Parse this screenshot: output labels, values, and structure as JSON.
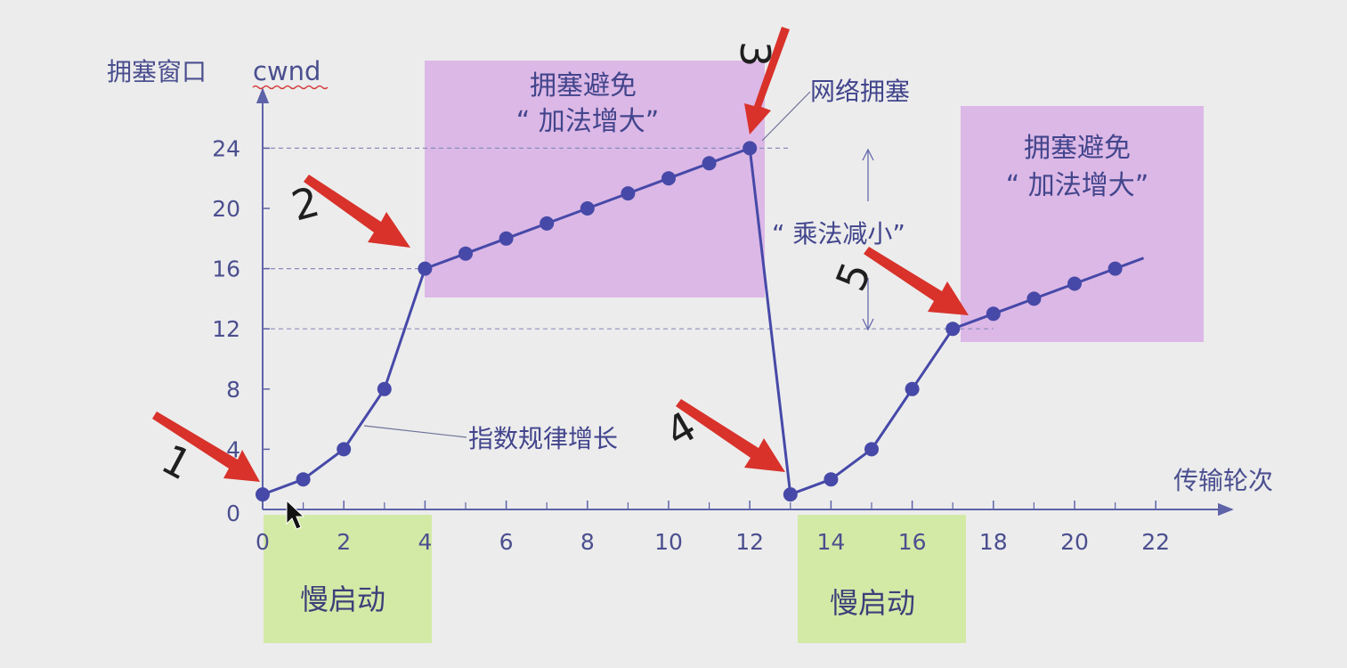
{
  "chart_data": {
    "type": "line",
    "ylabel": "拥塞窗口",
    "ylabel_var": "cwnd",
    "xlabel": "传输轮次",
    "x_ticks": [
      "0",
      "2",
      "4",
      "6",
      "8",
      "10",
      "12",
      "14",
      "16",
      "18",
      "20",
      "22"
    ],
    "y_ticks": [
      "0",
      "4",
      "8",
      "12",
      "16",
      "20",
      "24"
    ],
    "xlim": [
      0,
      23
    ],
    "ylim": [
      0,
      26
    ],
    "series": [
      {
        "x": [
          0,
          1,
          2,
          3,
          4,
          5,
          6,
          7,
          8,
          9,
          10,
          11,
          12,
          13,
          14,
          15,
          16,
          17,
          18,
          19,
          20,
          21
        ],
        "y": [
          1,
          2,
          4,
          8,
          16,
          17,
          18,
          19,
          20,
          21,
          22,
          23,
          24,
          1,
          2,
          4,
          8,
          12,
          13,
          14,
          15,
          16
        ]
      }
    ],
    "reference_lines": [
      {
        "y": 24,
        "x_from": 0,
        "x_to": 13
      },
      {
        "y": 16,
        "x_from": 0,
        "x_to": 4
      },
      {
        "y": 12,
        "x_from": 0,
        "x_to": 18
      }
    ],
    "regions": [
      {
        "kind": "congestion_avoidance",
        "line1": "拥塞避免",
        "line2": "“ 加法增大”",
        "color": "#dcb8e6"
      },
      {
        "kind": "congestion_avoidance",
        "line1": "拥塞避免",
        "line2": "“ 加法增大”",
        "color": "#dcb8e6"
      },
      {
        "kind": "slow_start",
        "label": "慢启动",
        "color": "#d3eaa6"
      },
      {
        "kind": "slow_start",
        "label": "慢启动",
        "color": "#d3eaa6"
      }
    ],
    "annotations": {
      "congestion": "网络拥塞",
      "multiplicative_decrease": "“ 乘法减小”",
      "exponential_growth": "指数规律增长"
    },
    "markers": [
      "1",
      "2",
      "3",
      "4",
      "5"
    ],
    "colors": {
      "line": "#4649a8",
      "point": "#4649a8",
      "axis": "#5e62a8",
      "arrow": "#d8322b",
      "text": "#4b4f8f"
    }
  }
}
